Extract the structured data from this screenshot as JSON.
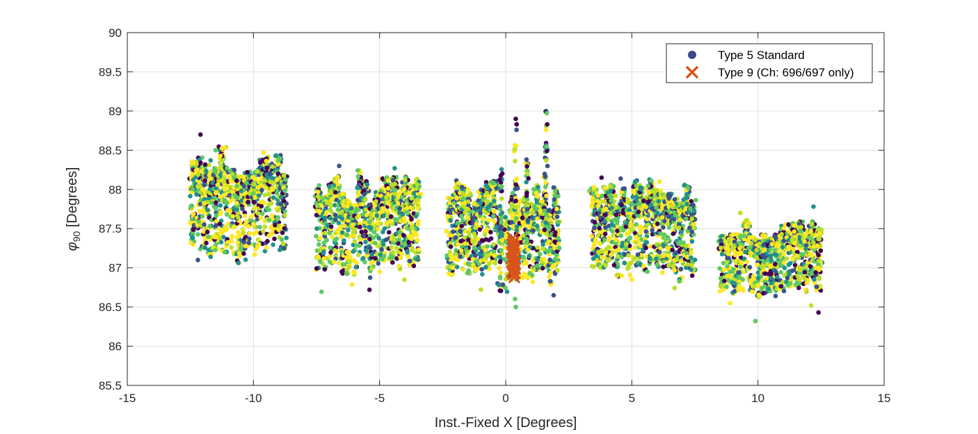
{
  "chart_data": {
    "type": "scatter",
    "title": "",
    "xlabel": "Inst.-Fixed X [Degrees]",
    "ylabel_symbol": "φ",
    "ylabel_subscript": "90",
    "ylabel_units": " [Degrees]",
    "xlim": [
      -15,
      15
    ],
    "ylim": [
      85.5,
      90
    ],
    "xticks": [
      -15,
      -10,
      -5,
      0,
      5,
      10,
      15
    ],
    "xtick_labels": [
      "-15",
      "-10",
      "-5",
      "0",
      "5",
      "10",
      "15"
    ],
    "yticks": [
      85.5,
      86,
      86.5,
      87,
      87.5,
      88,
      88.5,
      89,
      89.5,
      90
    ],
    "ytick_labels": [
      "85.5",
      "86",
      "86.5",
      "87",
      "87.5",
      "88",
      "88.5",
      "89",
      "89.5",
      "90"
    ],
    "grid": true,
    "legend_position": "top-right",
    "colors": {
      "axis": "#262626",
      "grid": "#dfdfdf",
      "viridis": [
        "#440154",
        "#3b528b",
        "#21918c",
        "#5ec962",
        "#bddf26",
        "#fde725"
      ],
      "legend_marker": "#3b4a8b",
      "type9": "#d95319"
    },
    "series": [
      {
        "name": "Type 5 Standard",
        "marker": "circle",
        "clusters": [
          {
            "x": [
              -12.4,
              -8.8
            ],
            "columns": 17,
            "y": [
              87.25,
              88.25
            ],
            "x_approx": -10.6,
            "sample_extremes": [
              [
                -12.1,
                88.7
              ],
              [
                -12.2,
                87.1
              ],
              [
                -11.5,
                88.5
              ],
              [
                -9.6,
                88.47
              ],
              [
                -10.5,
                87.25
              ]
            ]
          },
          {
            "x": [
              -7.4,
              -3.5
            ],
            "columns": 18,
            "y": [
              87.05,
              87.95
            ],
            "x_approx": -5.4,
            "sample_extremes": [
              [
                -6.6,
                88.3
              ],
              [
                -4.4,
                88.27
              ],
              [
                -6.5,
                86.95
              ],
              [
                -5.4,
                86.72
              ],
              [
                -5.0,
                86.95
              ]
            ]
          },
          {
            "x": [
              -2.2,
              2.0
            ],
            "columns": 18,
            "y": [
              86.9,
              87.8
            ],
            "x_approx": 0.0,
            "sample_extremes": [
              [
                0.4,
                88.9
              ],
              [
                1.6,
                89.0
              ],
              [
                0.4,
                86.5
              ],
              [
                1.9,
                86.65
              ],
              [
                -1.5,
                88.0
              ]
            ]
          },
          {
            "x": [
              3.5,
              7.4
            ],
            "columns": 18,
            "y": [
              87.0,
              87.85
            ],
            "x_approx": 5.4,
            "sample_extremes": [
              [
                3.8,
                88.15
              ],
              [
                6.1,
                88.1
              ],
              [
                5.0,
                86.85
              ],
              [
                6.7,
                86.97
              ],
              [
                4.6,
                86.9
              ]
            ]
          },
          {
            "x": [
              8.6,
              12.4
            ],
            "columns": 17,
            "y": [
              86.75,
              87.4
            ],
            "x_approx": 10.5,
            "sample_extremes": [
              [
                9.3,
                87.7
              ],
              [
                12.2,
                87.78
              ],
              [
                9.9,
                86.32
              ],
              [
                12.4,
                86.43
              ],
              [
                8.9,
                86.55
              ]
            ]
          }
        ]
      },
      {
        "name": "Type 9 (Ch: 696/697 only)",
        "marker": "x",
        "points": [
          [
            0.28,
            87.38
          ],
          [
            0.3,
            87.33
          ],
          [
            0.33,
            87.28
          ],
          [
            0.36,
            87.24
          ],
          [
            0.25,
            87.2
          ],
          [
            0.31,
            87.15
          ],
          [
            0.35,
            87.11
          ],
          [
            0.27,
            87.07
          ],
          [
            0.32,
            87.03
          ],
          [
            0.37,
            86.99
          ],
          [
            0.24,
            86.95
          ],
          [
            0.29,
            86.92
          ],
          [
            0.34,
            86.88
          ],
          [
            0.31,
            87.25
          ],
          [
            0.26,
            87.3
          ],
          [
            0.38,
            87.05
          ],
          [
            0.3,
            86.97
          ],
          [
            0.33,
            87.18
          ],
          [
            0.23,
            87.12
          ],
          [
            0.36,
            86.93
          ]
        ]
      }
    ]
  }
}
